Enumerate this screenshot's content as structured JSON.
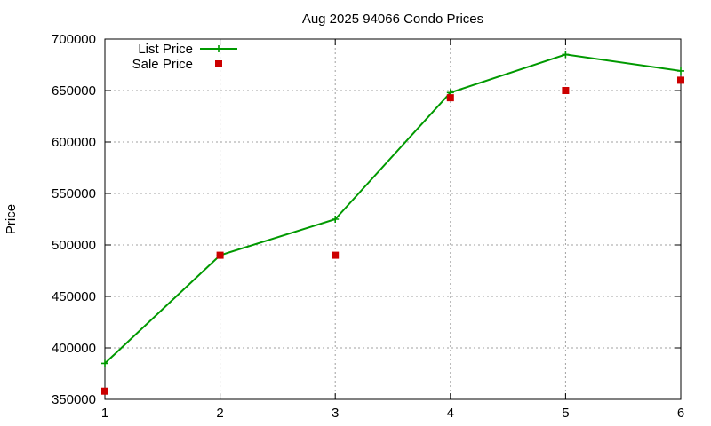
{
  "chart_data": {
    "type": "line",
    "title": "Aug 2025 94066 Condo Prices",
    "xlabel": "",
    "ylabel": "Price",
    "x": [
      1,
      2,
      3,
      4,
      5,
      6
    ],
    "xlim": [
      1,
      6
    ],
    "ylim": [
      350000,
      700000
    ],
    "xticks": [
      "1",
      "2",
      "3",
      "4",
      "5",
      "6"
    ],
    "yticks": [
      "350000",
      "400000",
      "450000",
      "500000",
      "550000",
      "600000",
      "650000",
      "700000"
    ],
    "grid": true,
    "legend_position": "top-left",
    "series": [
      {
        "name": "List Price",
        "style": "line-with-plus-markers",
        "color": "#009900",
        "values": [
          385000,
          490000,
          525000,
          648000,
          685000,
          669000
        ]
      },
      {
        "name": "Sale Price",
        "style": "square-markers",
        "color": "#cc0000",
        "values": [
          358000,
          490000,
          490000,
          643000,
          650000,
          660000
        ]
      }
    ]
  }
}
